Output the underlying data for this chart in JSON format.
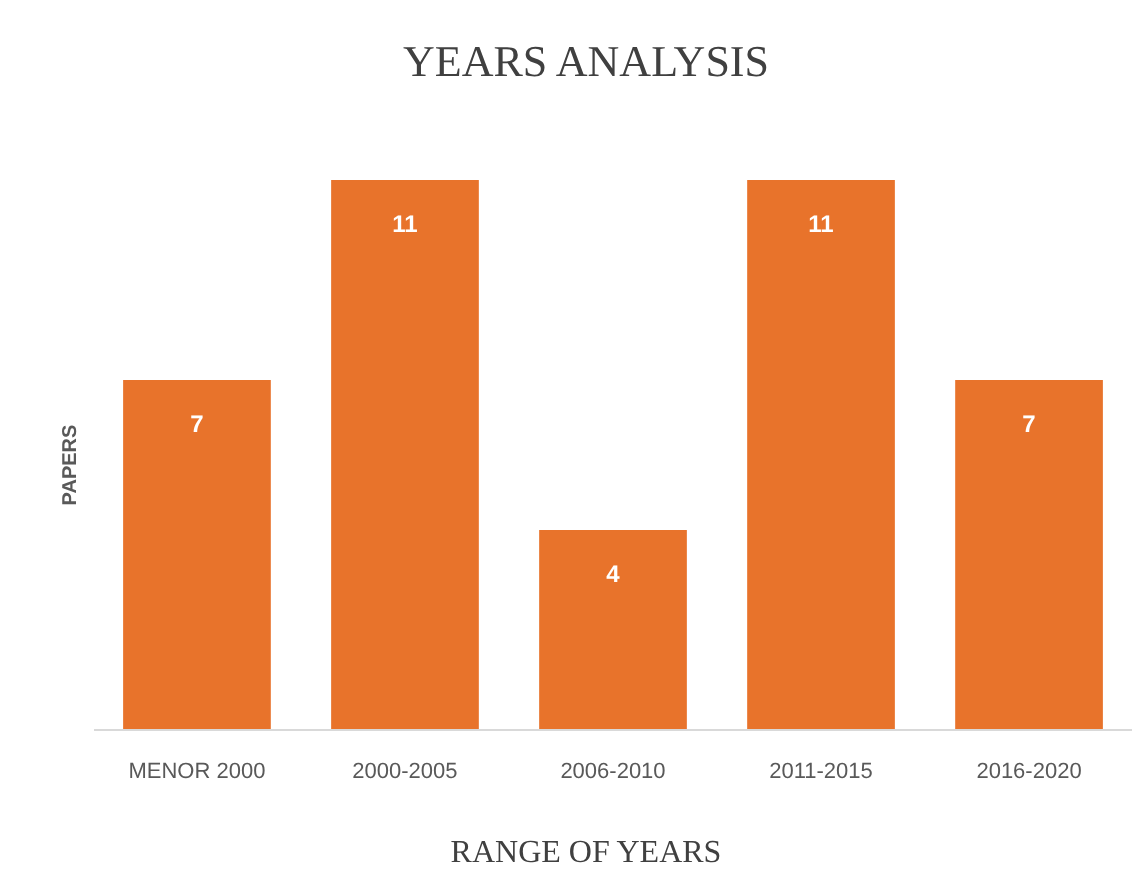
{
  "chart_data": {
    "type": "bar",
    "title": "YEARS ANALYSIS",
    "xlabel": "RANGE OF YEARS",
    "ylabel": "PAPERS",
    "categories": [
      "MENOR 2000",
      "2000-2005",
      "2006-2010",
      "2011-2015",
      "2016-2020"
    ],
    "values": [
      7,
      11,
      4,
      11,
      7
    ],
    "color": "#e8732b",
    "data_labels": true
  }
}
